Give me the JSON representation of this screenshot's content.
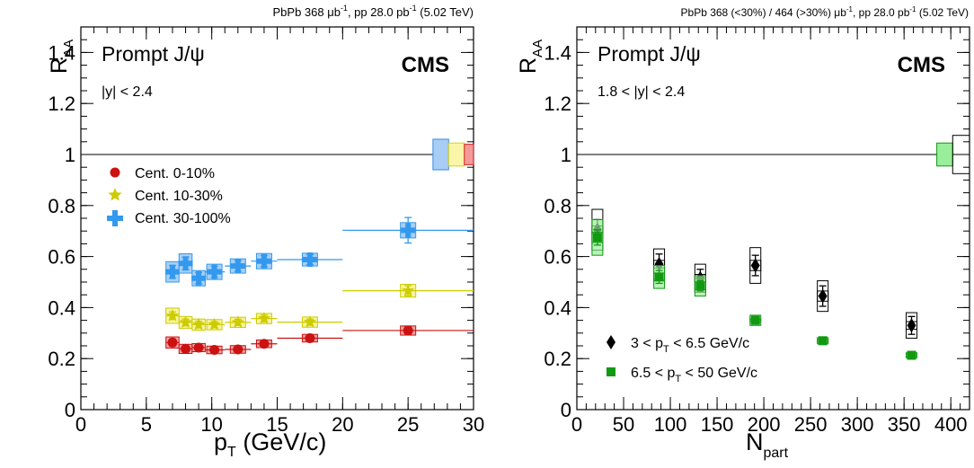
{
  "chart_data": [
    {
      "type": "scatter",
      "header": {
        "main": "PbPb 368 μb",
        "sup1": "-1",
        "mid": ", pp 28.0 pb",
        "sup2": "-1",
        "tail": " (5.02 TeV)"
      },
      "title": "Prompt J/ψ",
      "brand": "CMS",
      "annotation": "|y| < 2.4",
      "ylabel": {
        "main": "R",
        "sub": "AA"
      },
      "xlabel": {
        "p": "p",
        "sub": "T",
        "rest": " (GeV/c)"
      },
      "xlim": [
        0,
        30
      ],
      "ylim": [
        0,
        1.5
      ],
      "xticks": [
        0,
        5,
        10,
        15,
        20,
        25,
        30
      ],
      "yticks": [
        0,
        0.2,
        0.4,
        0.6,
        0.8,
        1,
        1.2,
        1.4
      ],
      "reference_line": 1,
      "global_boxes": [
        {
          "x": [
            26.9,
            28.1
          ],
          "y": [
            0.94,
            1.06
          ],
          "fill": "#a7cdf4",
          "stroke": "#3a8de0"
        },
        {
          "x": [
            28.1,
            29.3
          ],
          "y": [
            0.955,
            1.045
          ],
          "fill": "#fbf5a7",
          "stroke": "#d4cf1a"
        },
        {
          "x": [
            29.3,
            30.0
          ],
          "y": [
            0.96,
            1.04
          ],
          "fill": "#f39b9b",
          "stroke": "#d32020"
        }
      ],
      "legend": {
        "position": "top-left",
        "entries": [
          "Cent. 0-10%",
          "Cent. 10-30%",
          "Cent. 30-100%"
        ]
      },
      "series": [
        {
          "name": "Cent. 0-10%",
          "marker": "circle",
          "color": "#cc1111",
          "fill": "#f0a3a3",
          "points": [
            {
              "x": 7.0,
              "xerr": [
                6.5,
                7.5
              ],
              "y": 0.263,
              "stat": 0.013,
              "syst": 0.022
            },
            {
              "x": 8.0,
              "xerr": [
                7.5,
                8.5
              ],
              "y": 0.238,
              "stat": 0.01,
              "syst": 0.018
            },
            {
              "x": 9.0,
              "xerr": [
                8.5,
                9.5
              ],
              "y": 0.243,
              "stat": 0.01,
              "syst": 0.016
            },
            {
              "x": 10.2,
              "xerr": [
                9.5,
                11.0
              ],
              "y": 0.234,
              "stat": 0.009,
              "syst": 0.015
            },
            {
              "x": 12.0,
              "xerr": [
                11.0,
                13.0
              ],
              "y": 0.236,
              "stat": 0.009,
              "syst": 0.015
            },
            {
              "x": 14.0,
              "xerr": [
                13.0,
                15.0
              ],
              "y": 0.258,
              "stat": 0.01,
              "syst": 0.015
            },
            {
              "x": 17.5,
              "xerr": [
                15.0,
                20.0
              ],
              "y": 0.28,
              "stat": 0.01,
              "syst": 0.015
            },
            {
              "x": 25.0,
              "xerr": [
                20.0,
                30.0
              ],
              "y": 0.31,
              "stat": 0.015,
              "syst": 0.018
            }
          ]
        },
        {
          "name": "Cent. 10-30%",
          "marker": "star",
          "color": "#cccc00",
          "fill": "#f7f3a0",
          "points": [
            {
              "x": 7.0,
              "xerr": [
                6.5,
                7.5
              ],
              "y": 0.368,
              "stat": 0.015,
              "syst": 0.03
            },
            {
              "x": 8.0,
              "xerr": [
                7.5,
                8.5
              ],
              "y": 0.342,
              "stat": 0.013,
              "syst": 0.023
            },
            {
              "x": 9.0,
              "xerr": [
                8.5,
                9.5
              ],
              "y": 0.333,
              "stat": 0.013,
              "syst": 0.022
            },
            {
              "x": 10.2,
              "xerr": [
                9.5,
                11.0
              ],
              "y": 0.333,
              "stat": 0.012,
              "syst": 0.02
            },
            {
              "x": 12.0,
              "xerr": [
                11.0,
                13.0
              ],
              "y": 0.342,
              "stat": 0.012,
              "syst": 0.02
            },
            {
              "x": 14.0,
              "xerr": [
                13.0,
                15.0
              ],
              "y": 0.357,
              "stat": 0.013,
              "syst": 0.02
            },
            {
              "x": 17.5,
              "xerr": [
                15.0,
                20.0
              ],
              "y": 0.343,
              "stat": 0.012,
              "syst": 0.02
            },
            {
              "x": 25.0,
              "xerr": [
                20.0,
                30.0
              ],
              "y": 0.466,
              "stat": 0.02,
              "syst": 0.025
            }
          ]
        },
        {
          "name": "Cent. 30-100%",
          "marker": "cross",
          "color": "#3399ee",
          "fill": "#a9cff5",
          "points": [
            {
              "x": 7.0,
              "xerr": [
                6.5,
                7.5
              ],
              "y": 0.54,
              "stat": 0.025,
              "syst": 0.04
            },
            {
              "x": 8.0,
              "xerr": [
                7.5,
                8.5
              ],
              "y": 0.573,
              "stat": 0.025,
              "syst": 0.038
            },
            {
              "x": 9.0,
              "xerr": [
                8.5,
                9.5
              ],
              "y": 0.515,
              "stat": 0.022,
              "syst": 0.03
            },
            {
              "x": 10.2,
              "xerr": [
                9.5,
                11.0
              ],
              "y": 0.54,
              "stat": 0.022,
              "syst": 0.03
            },
            {
              "x": 12.0,
              "xerr": [
                11.0,
                13.0
              ],
              "y": 0.563,
              "stat": 0.022,
              "syst": 0.028
            },
            {
              "x": 14.0,
              "xerr": [
                13.0,
                15.0
              ],
              "y": 0.582,
              "stat": 0.022,
              "syst": 0.03
            },
            {
              "x": 17.5,
              "xerr": [
                15.0,
                20.0
              ],
              "y": 0.588,
              "stat": 0.02,
              "syst": 0.025
            },
            {
              "x": 25.0,
              "xerr": [
                20.0,
                30.0
              ],
              "y": 0.703,
              "stat": 0.05,
              "syst": 0.03
            }
          ]
        }
      ]
    },
    {
      "type": "scatter",
      "header": {
        "main": "PbPb 368 (<30%) / 464 (>30%) μb",
        "sup1": "-1",
        "mid": ", pp 28.0 pb",
        "sup2": "-1",
        "tail": " (5.02 TeV)"
      },
      "title": "Prompt J/ψ",
      "brand": "CMS",
      "annotation": "1.8 < |y| < 2.4",
      "ylabel": {
        "main": "R",
        "sub": "AA"
      },
      "xlabel": {
        "main": "N",
        "sub": "part"
      },
      "xlim": [
        0,
        420
      ],
      "ylim": [
        0,
        1.5
      ],
      "xticks": [
        0,
        50,
        100,
        150,
        200,
        250,
        300,
        350,
        400
      ],
      "yticks": [
        0,
        0.2,
        0.4,
        0.6,
        0.8,
        1,
        1.2,
        1.4
      ],
      "reference_line": 1,
      "global_boxes": [
        {
          "x": [
            385,
            402
          ],
          "y": [
            0.955,
            1.045
          ],
          "fill": "#99ee99",
          "stroke": "#119911"
        },
        {
          "x": [
            402,
            420
          ],
          "y": [
            0.925,
            1.075
          ],
          "fill": "none",
          "stroke": "#000000"
        }
      ],
      "legend": {
        "position": "bottom-left",
        "entries": [
          {
            "pre": "3 < p",
            "sub": "T",
            "post": " < 6.5 GeV/c"
          },
          {
            "pre": "6.5 < p",
            "sub": "T",
            "post": " < 50 GeV/c"
          }
        ]
      },
      "series": [
        {
          "name": "3 < pT < 6.5 GeV/c",
          "marker": "diamond",
          "color": "#000000",
          "fill": "none",
          "points": [
            {
              "x": 22,
              "y": 0.705,
              "stat": 0.04,
              "syst": 0.08,
              "subsyst": [
                0.69,
                0.72
              ]
            },
            {
              "x": 88,
              "y": 0.57,
              "stat": 0.04,
              "syst": 0.06,
              "subsyst": [
                0.555,
                0.585
              ]
            },
            {
              "x": 132,
              "y": 0.515,
              "stat": 0.035,
              "syst": 0.055,
              "subsyst": [
                0.5,
                0.53
              ]
            },
            {
              "x": 191,
              "y": 0.565,
              "stat": 0.04,
              "syst": 0.07,
              "subsyst": [
                0.545,
                0.585
              ]
            },
            {
              "x": 263,
              "y": 0.445,
              "stat": 0.04,
              "syst": 0.06,
              "subsyst": [
                0.425,
                0.465
              ]
            },
            {
              "x": 358,
              "y": 0.33,
              "stat": 0.035,
              "syst": 0.05,
              "subsyst": [
                0.315,
                0.345
              ]
            }
          ]
        },
        {
          "name": "6.5 < pT < 50 GeV/c",
          "marker": "square",
          "color": "#119911",
          "fill": "#99ee99",
          "points": [
            {
              "x": 22,
              "y": 0.675,
              "stat": 0.03,
              "syst": 0.07,
              "subsyst": [
                0.655,
                0.695
              ]
            },
            {
              "x": 88,
              "y": 0.52,
              "stat": 0.025,
              "syst": 0.045,
              "subsyst": [
                0.505,
                0.535
              ]
            },
            {
              "x": 132,
              "y": 0.485,
              "stat": 0.02,
              "syst": 0.04,
              "subsyst": [
                0.47,
                0.5
              ]
            },
            {
              "x": 191,
              "y": 0.35,
              "stat": 0.015,
              "syst": 0.02,
              "subsyst": [
                0.345,
                0.355
              ]
            },
            {
              "x": 263,
              "y": 0.27,
              "stat": 0.01,
              "syst": 0.012,
              "subsyst": [
                0.265,
                0.275
              ]
            },
            {
              "x": 358,
              "y": 0.213,
              "stat": 0.008,
              "syst": 0.01,
              "subsyst": [
                0.209,
                0.217
              ]
            }
          ]
        }
      ]
    }
  ]
}
